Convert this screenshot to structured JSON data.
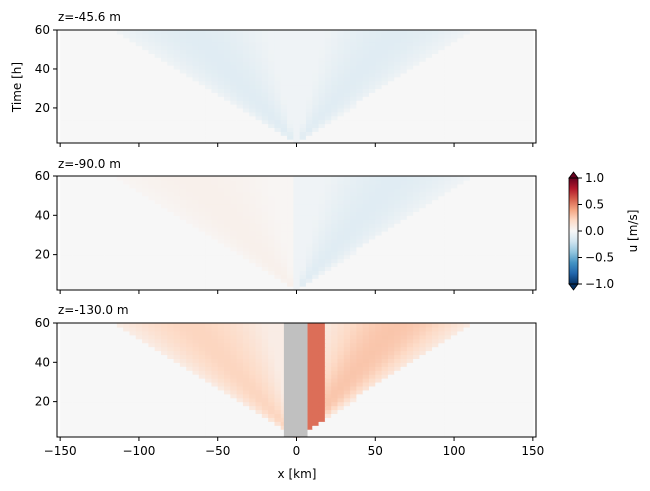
{
  "chart_data": {
    "type": "heatmap",
    "panels": [
      {
        "title": "z=-45.6 m",
        "ylabel": "Time [h]",
        "ylim": [
          2,
          60
        ],
        "yticks": [
          20,
          40,
          60
        ],
        "fan": {
          "left_edge_x": -115,
          "right_edge_x": 110,
          "apex_x": 0,
          "apex_t": 2,
          "left_value": -0.12,
          "right_value": -0.12
        },
        "obstacle": null
      },
      {
        "title": "z=-90.0 m",
        "ylabel": "",
        "ylim": [
          2,
          60
        ],
        "yticks": [
          20,
          40,
          60
        ],
        "fan": {
          "left_edge_x": -115,
          "right_edge_x": 110,
          "apex_x": 0,
          "apex_t": 2,
          "left_value": 0.05,
          "right_value": -0.12
        },
        "obstacle": null
      },
      {
        "title": "z=-130.0 m",
        "ylabel": "",
        "ylim": [
          2,
          60
        ],
        "yticks": [
          20,
          40,
          60
        ],
        "fan": {
          "left_edge_x": -115,
          "right_edge_x": 110,
          "apex_x": 0,
          "apex_t": 2,
          "left_value": 0.22,
          "right_value": 0.28
        },
        "obstacle": {
          "x_min": -8,
          "x_max": 7,
          "color": "#c0c0c0"
        }
      }
    ],
    "x": {
      "label": "x [km]",
      "lim": [
        -152,
        152
      ],
      "ticks": [
        -150,
        -100,
        -50,
        0,
        50,
        100,
        150
      ]
    },
    "colorbar": {
      "label": "u [m/s]",
      "vmin": -1.0,
      "vmax": 1.0,
      "ticks": [
        "1.0",
        "0.5",
        "0.0",
        "−0.5",
        "−1.0"
      ],
      "colormap": "RdBu_r",
      "extend": "both"
    }
  }
}
